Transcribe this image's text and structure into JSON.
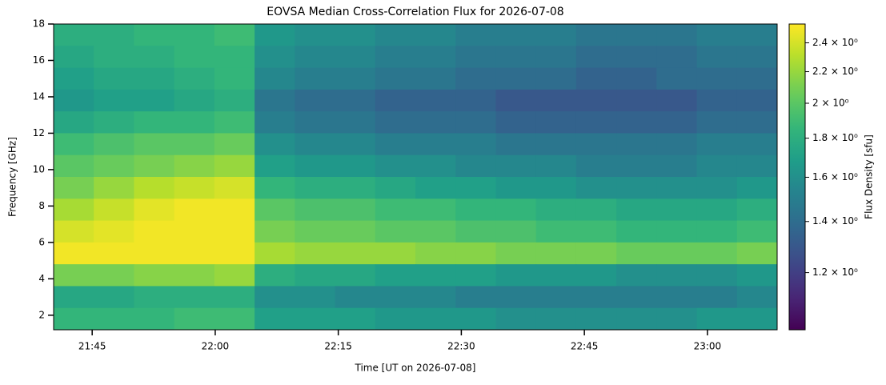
{
  "chart_data": {
    "type": "heatmap",
    "title": "EOVSA Median Cross-Correlation Flux for 2026-07-08",
    "xlabel": "Time [UT on 2026-07-08]",
    "ylabel": "Frequency [GHz]",
    "colorbar_label": "Flux Density [sfu]",
    "colormap": "viridis",
    "xlim": [
      "2026-07-08T21:40:18",
      "2026-07-08T23:08:30"
    ],
    "xticks": [
      {
        "value": "2026-07-08T21:45",
        "label": "21:45"
      },
      {
        "value": "2026-07-08T22:00",
        "label": "22:00"
      },
      {
        "value": "2026-07-08T22:15",
        "label": "22:15"
      },
      {
        "value": "2026-07-08T22:30",
        "label": "22:30"
      },
      {
        "value": "2026-07-08T22:45",
        "label": "22:45"
      },
      {
        "value": "2026-07-08T23:00",
        "label": "23:00"
      }
    ],
    "ylim": [
      1.2,
      18
    ],
    "yticks": [
      2,
      4,
      6,
      8,
      10,
      12,
      14,
      16,
      18
    ],
    "clim": [
      1.01,
      2.54
    ],
    "clog": true,
    "cticks": [
      {
        "value": 1.2,
        "label": "1.2 × 10⁰"
      },
      {
        "value": 1.4,
        "label": "1.4 × 10⁰"
      },
      {
        "value": 1.6,
        "label": "1.6 × 10⁰"
      },
      {
        "value": 1.8,
        "label": "1.8 × 10⁰"
      },
      {
        "value": 2,
        "label": "2 × 10⁰"
      },
      {
        "value": 2.2,
        "label": "2.2 × 10⁰"
      },
      {
        "value": 2.4,
        "label": "2.4 × 10⁰"
      }
    ],
    "z": [
      [
        1.8,
        1.8,
        1.85,
        1.85,
        1.9,
        1.65,
        1.6,
        1.6,
        1.55,
        1.55,
        1.5,
        1.5,
        1.5,
        1.45,
        1.45,
        1.45,
        1.5,
        1.5
      ],
      [
        1.75,
        1.8,
        1.8,
        1.85,
        1.85,
        1.6,
        1.55,
        1.55,
        1.5,
        1.5,
        1.45,
        1.45,
        1.45,
        1.4,
        1.4,
        1.4,
        1.45,
        1.45
      ],
      [
        1.7,
        1.75,
        1.75,
        1.8,
        1.85,
        1.55,
        1.5,
        1.5,
        1.45,
        1.45,
        1.4,
        1.4,
        1.4,
        1.35,
        1.35,
        1.4,
        1.4,
        1.4
      ],
      [
        1.65,
        1.7,
        1.7,
        1.75,
        1.8,
        1.45,
        1.4,
        1.4,
        1.35,
        1.35,
        1.35,
        1.3,
        1.3,
        1.3,
        1.3,
        1.3,
        1.35,
        1.35
      ],
      [
        1.75,
        1.8,
        1.85,
        1.85,
        1.9,
        1.5,
        1.45,
        1.45,
        1.4,
        1.4,
        1.4,
        1.35,
        1.35,
        1.35,
        1.35,
        1.35,
        1.4,
        1.4
      ],
      [
        1.9,
        1.95,
        2.0,
        2.0,
        2.05,
        1.6,
        1.55,
        1.55,
        1.5,
        1.5,
        1.5,
        1.45,
        1.45,
        1.45,
        1.45,
        1.45,
        1.5,
        1.5
      ],
      [
        2.0,
        2.05,
        2.1,
        2.15,
        2.2,
        1.7,
        1.65,
        1.65,
        1.6,
        1.6,
        1.55,
        1.55,
        1.55,
        1.5,
        1.5,
        1.5,
        1.55,
        1.55
      ],
      [
        2.1,
        2.2,
        2.3,
        2.35,
        2.4,
        1.85,
        1.8,
        1.8,
        1.75,
        1.7,
        1.7,
        1.65,
        1.65,
        1.6,
        1.6,
        1.6,
        1.6,
        1.65
      ],
      [
        2.25,
        2.35,
        2.45,
        2.5,
        2.5,
        2.0,
        1.95,
        1.95,
        1.9,
        1.9,
        1.85,
        1.85,
        1.8,
        1.8,
        1.75,
        1.75,
        1.75,
        1.8
      ],
      [
        2.4,
        2.45,
        2.5,
        2.5,
        2.5,
        2.1,
        2.05,
        2.05,
        2.0,
        2.0,
        1.95,
        1.95,
        1.9,
        1.9,
        1.85,
        1.85,
        1.85,
        1.9
      ],
      [
        2.5,
        2.5,
        2.5,
        2.5,
        2.5,
        2.25,
        2.2,
        2.2,
        2.2,
        2.15,
        2.15,
        2.1,
        2.1,
        2.1,
        2.05,
        2.05,
        2.05,
        2.1
      ],
      [
        2.1,
        2.1,
        2.15,
        2.15,
        2.2,
        1.8,
        1.75,
        1.75,
        1.7,
        1.7,
        1.7,
        1.65,
        1.65,
        1.65,
        1.6,
        1.6,
        1.6,
        1.65
      ],
      [
        1.75,
        1.75,
        1.8,
        1.8,
        1.8,
        1.6,
        1.6,
        1.55,
        1.55,
        1.55,
        1.5,
        1.5,
        1.5,
        1.5,
        1.5,
        1.5,
        1.5,
        1.55
      ],
      [
        1.85,
        1.85,
        1.85,
        1.9,
        1.9,
        1.7,
        1.7,
        1.7,
        1.65,
        1.65,
        1.65,
        1.6,
        1.6,
        1.6,
        1.6,
        1.6,
        1.65,
        1.65
      ]
    ]
  }
}
